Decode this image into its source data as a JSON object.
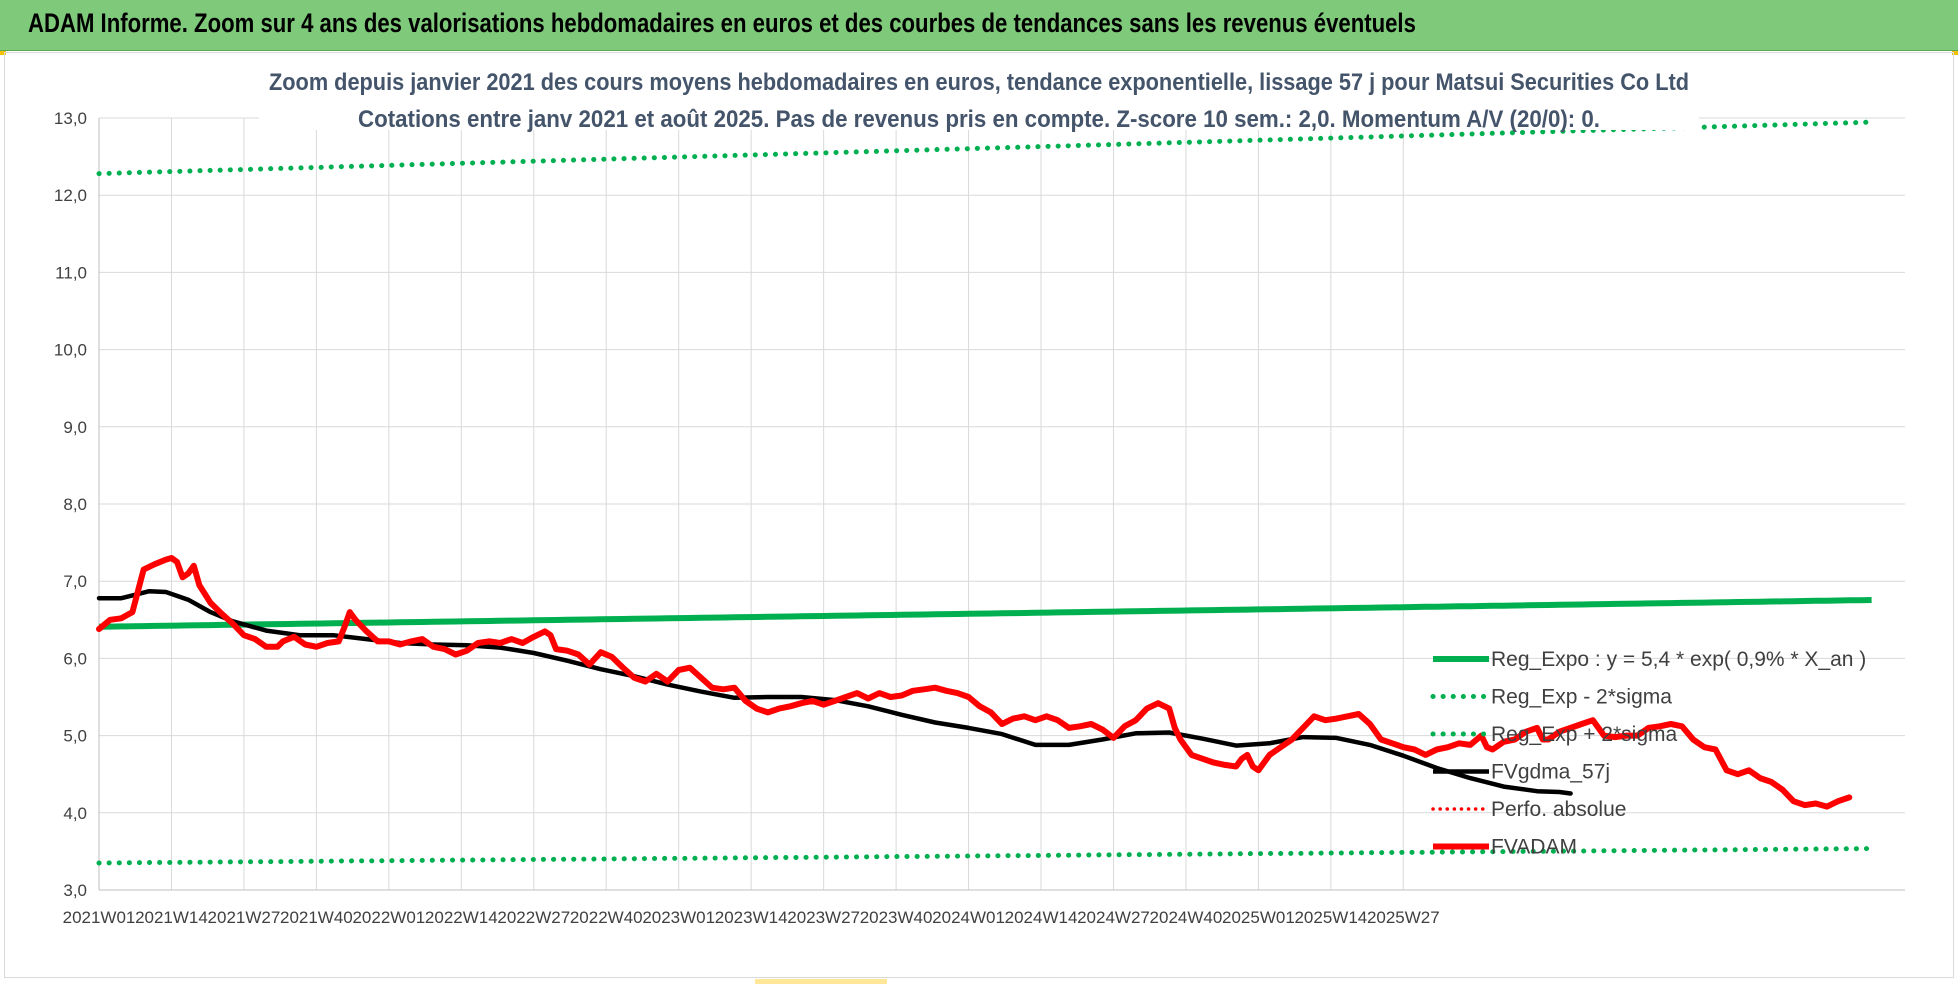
{
  "banner": {
    "title": "ADAM Informe. Zoom sur 4 ans des valorisations hebdomadaires en euros et des courbes de tendances sans les revenus éventuels",
    "color": "#7fc97a"
  },
  "chart_data": {
    "type": "line",
    "title_line1": "Zoom depuis janvier 2021 des cours moyens hebdomadaires en euros, tendance exponentielle, lissage 57 j pour Matsui Securities Co Ltd",
    "title_line2": "Cotations entre janv 2021 et août 2025. Pas de revenus pris en compte. Z-score 10 sem.: 2,0. Momentum A/V (20/0): 0.",
    "ylim": [
      3.0,
      13.0
    ],
    "y_ticks": [
      "3,0",
      "4,0",
      "5,0",
      "6,0",
      "7,0",
      "8,0",
      "9,0",
      "10,0",
      "11,0",
      "12,0",
      "13,0"
    ],
    "x_ticks": [
      "2021W01",
      "2021W14",
      "2021W27",
      "2021W40",
      "2022W01",
      "2022W14",
      "2022W27",
      "2022W40",
      "2023W01",
      "2023W14",
      "2023W27",
      "2023W40",
      "2024W01",
      "2024W14",
      "2024W27",
      "2024W40",
      "2025W01",
      "2025W14",
      "2025W27"
    ],
    "grid": true,
    "legend_position": "right",
    "series": [
      {
        "name": "Reg_Expo : y = 5,4 * exp( 0,9% *  X_an )",
        "color": "#00b050",
        "style": "solid",
        "key_points": [
          [
            0,
            6.41
          ],
          [
            240,
            6.67
          ]
        ]
      },
      {
        "name": "Reg_Exp - 2*sigma",
        "color": "#00b050",
        "style": "dotted",
        "key_points": [
          [
            0,
            3.35
          ],
          [
            240,
            3.49
          ]
        ]
      },
      {
        "name": "Reg_Exp + 2*sigma",
        "color": "#00b050",
        "style": "dotted",
        "key_points": [
          [
            0,
            12.28
          ],
          [
            240,
            12.78
          ]
        ]
      },
      {
        "name": "FVgdma_57j",
        "color": "#000000",
        "style": "solid",
        "key_points": [
          [
            0,
            6.78
          ],
          [
            4,
            6.78
          ],
          [
            9,
            6.87
          ],
          [
            12,
            6.86
          ],
          [
            16,
            6.76
          ],
          [
            20,
            6.6
          ],
          [
            24,
            6.48
          ],
          [
            30,
            6.36
          ],
          [
            36,
            6.3
          ],
          [
            42,
            6.3
          ],
          [
            48,
            6.25
          ],
          [
            54,
            6.2
          ],
          [
            60,
            6.18
          ],
          [
            66,
            6.17
          ],
          [
            72,
            6.14
          ],
          [
            78,
            6.07
          ],
          [
            84,
            5.97
          ],
          [
            90,
            5.86
          ],
          [
            96,
            5.77
          ],
          [
            102,
            5.66
          ],
          [
            108,
            5.57
          ],
          [
            114,
            5.49
          ],
          [
            120,
            5.5
          ],
          [
            126,
            5.5
          ],
          [
            132,
            5.46
          ],
          [
            138,
            5.38
          ],
          [
            144,
            5.27
          ],
          [
            150,
            5.17
          ],
          [
            156,
            5.1
          ],
          [
            162,
            5.02
          ],
          [
            168,
            4.88
          ],
          [
            174,
            4.88
          ],
          [
            180,
            4.95
          ],
          [
            186,
            5.03
          ],
          [
            192,
            5.04
          ],
          [
            198,
            4.96
          ],
          [
            204,
            4.87
          ],
          [
            210,
            4.9
          ],
          [
            216,
            4.98
          ],
          [
            222,
            4.97
          ],
          [
            228,
            4.88
          ],
          [
            234,
            4.74
          ],
          [
            240,
            4.58
          ],
          [
            246,
            4.45
          ],
          [
            252,
            4.34
          ],
          [
            258,
            4.28
          ],
          [
            262,
            4.27
          ],
          [
            264,
            4.25
          ]
        ]
      },
      {
        "name": "Perfo. absolue",
        "color": "#ff0000",
        "style": "dotted",
        "key_points": []
      },
      {
        "name": "FVADAM",
        "color": "#ff0000",
        "style": "solid",
        "key_points": [
          [
            0,
            6.38
          ],
          [
            2,
            6.5
          ],
          [
            4,
            6.52
          ],
          [
            6,
            6.6
          ],
          [
            8,
            7.15
          ],
          [
            10,
            7.22
          ],
          [
            12,
            7.28
          ],
          [
            13,
            7.3
          ],
          [
            14,
            7.25
          ],
          [
            15,
            7.05
          ],
          [
            16,
            7.1
          ],
          [
            17,
            7.2
          ],
          [
            18,
            6.95
          ],
          [
            20,
            6.72
          ],
          [
            22,
            6.58
          ],
          [
            24,
            6.45
          ],
          [
            26,
            6.3
          ],
          [
            28,
            6.25
          ],
          [
            30,
            6.15
          ],
          [
            32,
            6.15
          ],
          [
            33,
            6.22
          ],
          [
            35,
            6.28
          ],
          [
            37,
            6.18
          ],
          [
            39,
            6.15
          ],
          [
            41,
            6.2
          ],
          [
            43,
            6.22
          ],
          [
            44,
            6.4
          ],
          [
            45,
            6.6
          ],
          [
            46,
            6.5
          ],
          [
            48,
            6.35
          ],
          [
            50,
            6.22
          ],
          [
            52,
            6.22
          ],
          [
            54,
            6.18
          ],
          [
            56,
            6.22
          ],
          [
            58,
            6.25
          ],
          [
            60,
            6.15
          ],
          [
            62,
            6.12
          ],
          [
            64,
            6.05
          ],
          [
            66,
            6.1
          ],
          [
            68,
            6.2
          ],
          [
            70,
            6.22
          ],
          [
            72,
            6.2
          ],
          [
            74,
            6.25
          ],
          [
            76,
            6.2
          ],
          [
            78,
            6.28
          ],
          [
            80,
            6.35
          ],
          [
            81,
            6.3
          ],
          [
            82,
            6.12
          ],
          [
            84,
            6.1
          ],
          [
            86,
            6.05
          ],
          [
            88,
            5.92
          ],
          [
            90,
            6.08
          ],
          [
            92,
            6.02
          ],
          [
            94,
            5.88
          ],
          [
            96,
            5.75
          ],
          [
            98,
            5.7
          ],
          [
            100,
            5.8
          ],
          [
            102,
            5.7
          ],
          [
            104,
            5.85
          ],
          [
            106,
            5.88
          ],
          [
            108,
            5.75
          ],
          [
            110,
            5.62
          ],
          [
            112,
            5.6
          ],
          [
            114,
            5.62
          ],
          [
            116,
            5.45
          ],
          [
            118,
            5.35
          ],
          [
            120,
            5.3
          ],
          [
            122,
            5.35
          ],
          [
            124,
            5.38
          ],
          [
            126,
            5.42
          ],
          [
            128,
            5.45
          ],
          [
            130,
            5.4
          ],
          [
            132,
            5.45
          ],
          [
            134,
            5.5
          ],
          [
            136,
            5.55
          ],
          [
            138,
            5.48
          ],
          [
            140,
            5.55
          ],
          [
            142,
            5.5
          ],
          [
            144,
            5.52
          ],
          [
            146,
            5.58
          ],
          [
            148,
            5.6
          ],
          [
            150,
            5.62
          ],
          [
            152,
            5.58
          ],
          [
            154,
            5.55
          ],
          [
            156,
            5.5
          ],
          [
            158,
            5.38
          ],
          [
            160,
            5.3
          ],
          [
            162,
            5.15
          ],
          [
            164,
            5.22
          ],
          [
            166,
            5.25
          ],
          [
            168,
            5.2
          ],
          [
            170,
            5.25
          ],
          [
            172,
            5.2
          ],
          [
            174,
            5.1
          ],
          [
            176,
            5.12
          ],
          [
            178,
            5.15
          ],
          [
            180,
            5.08
          ],
          [
            182,
            4.97
          ],
          [
            184,
            5.12
          ],
          [
            186,
            5.2
          ],
          [
            188,
            5.35
          ],
          [
            190,
            5.42
          ],
          [
            192,
            5.35
          ],
          [
            193,
            5.1
          ],
          [
            194,
            4.95
          ],
          [
            196,
            4.75
          ],
          [
            198,
            4.7
          ],
          [
            200,
            4.65
          ],
          [
            202,
            4.62
          ],
          [
            204,
            4.6
          ],
          [
            205,
            4.7
          ],
          [
            206,
            4.75
          ],
          [
            207,
            4.6
          ],
          [
            208,
            4.55
          ],
          [
            210,
            4.75
          ],
          [
            212,
            4.85
          ],
          [
            214,
            4.95
          ],
          [
            216,
            5.1
          ],
          [
            218,
            5.25
          ],
          [
            220,
            5.2
          ],
          [
            222,
            5.22
          ],
          [
            224,
            5.25
          ],
          [
            226,
            5.28
          ],
          [
            228,
            5.15
          ],
          [
            230,
            4.95
          ],
          [
            232,
            4.9
          ],
          [
            234,
            4.85
          ],
          [
            236,
            4.82
          ],
          [
            238,
            4.75
          ],
          [
            240,
            4.82
          ],
          [
            242,
            4.85
          ],
          [
            244,
            4.9
          ],
          [
            246,
            4.88
          ],
          [
            248,
            5.0
          ],
          [
            249,
            4.85
          ],
          [
            250,
            4.82
          ],
          [
            252,
            4.92
          ],
          [
            254,
            4.95
          ],
          [
            256,
            5.05
          ],
          [
            258,
            5.1
          ],
          [
            259,
            4.95
          ],
          [
            260,
            4.95
          ],
          [
            262,
            5.05
          ],
          [
            264,
            5.1
          ],
          [
            266,
            5.15
          ],
          [
            268,
            5.2
          ],
          [
            270,
            5.0
          ],
          [
            272,
            4.98
          ],
          [
            274,
            5.0
          ],
          [
            276,
            5.0
          ],
          [
            278,
            5.1
          ],
          [
            280,
            5.12
          ],
          [
            282,
            5.15
          ],
          [
            284,
            5.12
          ],
          [
            286,
            4.95
          ],
          [
            288,
            4.85
          ],
          [
            290,
            4.82
          ],
          [
            292,
            4.55
          ],
          [
            294,
            4.5
          ],
          [
            296,
            4.55
          ],
          [
            298,
            4.45
          ],
          [
            300,
            4.4
          ],
          [
            302,
            4.3
          ],
          [
            304,
            4.15
          ],
          [
            306,
            4.1
          ],
          [
            308,
            4.12
          ],
          [
            310,
            4.08
          ],
          [
            312,
            4.15
          ],
          [
            314,
            4.2
          ]
        ]
      }
    ],
    "legend_entries": [
      "Reg_Expo : y = 5,4 * exp( 0,9% *  X_an )",
      "Reg_Exp - 2*sigma",
      "Reg_Exp + 2*sigma",
      "FVgdma_57j",
      "Perfo. absolue",
      "FVADAM"
    ]
  }
}
